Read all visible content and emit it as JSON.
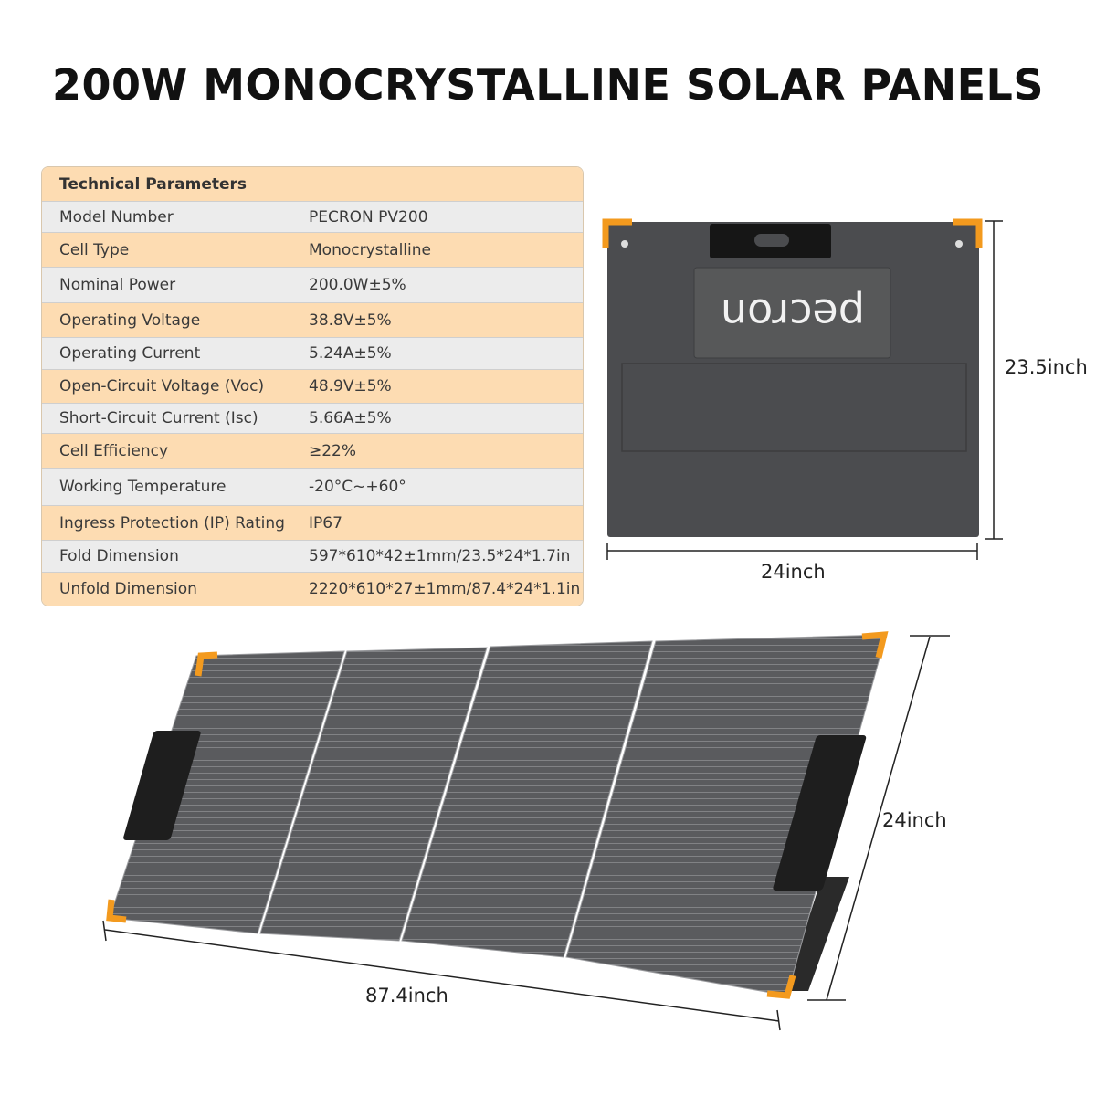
{
  "title": "200W MONOCRYSTALLINE SOLAR PANELS",
  "table": {
    "header": "Technical Parameters",
    "rows": [
      {
        "label": "Model Number",
        "value": "PECRON PV200"
      },
      {
        "label": "Cell Type",
        "value": "Monocrystalline"
      },
      {
        "label": "Nominal Power",
        "value": "200.0W±5%"
      },
      {
        "label": "Operating Voltage",
        "value": "38.8V±5%"
      },
      {
        "label": "Operating Current",
        "value": "5.24A±5%"
      },
      {
        "label": "Open-Circuit Voltage (Voc)",
        "value": "48.9V±5%"
      },
      {
        "label": "Short-Circuit Current (Isc)",
        "value": "5.66A±5%"
      },
      {
        "label": "Cell Efficiency",
        "value": "≥22%"
      },
      {
        "label": "Working Temperature",
        "value": "-20°C~+60°"
      },
      {
        "label": "Ingress Protection (IP) Rating",
        "value": "IP67"
      },
      {
        "label": "Fold Dimension",
        "value": "597*610*42±1mm/23.5*24*1.7in"
      },
      {
        "label": "Unfold Dimension",
        "value": "2220*610*27±1mm/87.4*24*1.1in"
      }
    ]
  },
  "folded": {
    "height_label": "23.5inch",
    "width_label": "24inch",
    "logo": "pecron"
  },
  "unfolded": {
    "length_label": "87.4inch",
    "height_label": "24inch"
  },
  "colors": {
    "header_row": "#fddcb2",
    "alt_row": "#ececec",
    "panel": "#4b4c4f",
    "accent": "#f39a1e"
  }
}
